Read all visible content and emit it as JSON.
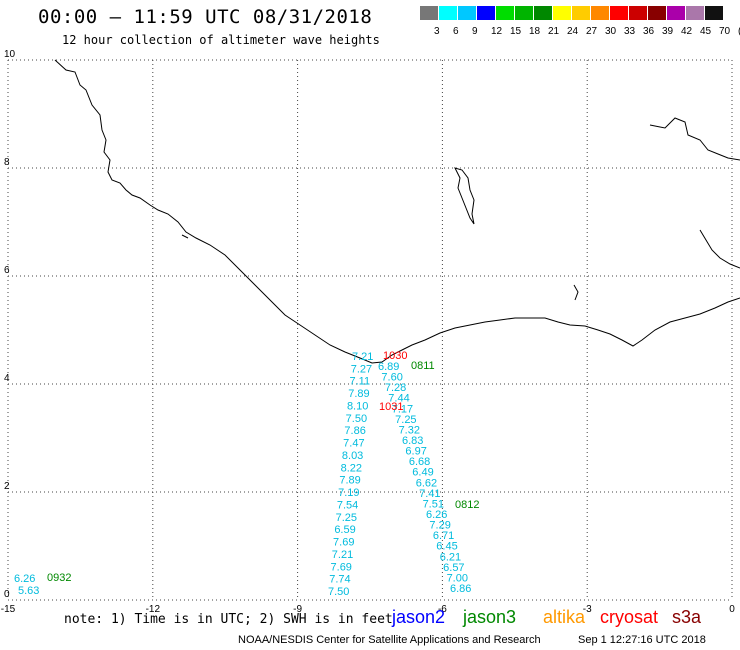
{
  "title": "00:00 – 11:59 UTC 08/31/2018",
  "subtitle": "12 hour collection of altimeter wave heights",
  "legend": {
    "colors": [
      "#777777",
      "#00ffff",
      "#00c8ff",
      "#0000ff",
      "#00dd00",
      "#00b400",
      "#008800",
      "#ffff00",
      "#ffcc00",
      "#ff8800",
      "#ff0000",
      "#cc0000",
      "#880000",
      "#aa00aa",
      "#aa77aa",
      "#111111"
    ],
    "labels": [
      "3",
      "6",
      "9",
      "12",
      "15",
      "18",
      "21",
      "24",
      "27",
      "30",
      "33",
      "36",
      "39",
      "42",
      "45",
      "70",
      "(ft)"
    ]
  },
  "axes": {
    "x_labels": [
      "-15",
      "-12",
      "-9",
      "-6",
      "-3",
      "0"
    ],
    "y_labels": [
      "0",
      "2",
      "4",
      "6",
      "8",
      "10"
    ],
    "x_range": [
      -15,
      0
    ],
    "y_range": [
      0,
      10
    ],
    "grid": "dotted"
  },
  "note": "note: 1) Time is in UTC; 2) SWH is in feet",
  "satellites": [
    {
      "name": "jason2",
      "color": "#0000ff"
    },
    {
      "name": "jason3",
      "color": "#008800"
    },
    {
      "name": "altika",
      "color": "#ff9900"
    },
    {
      "name": "cryosat",
      "color": "#ff0000"
    },
    {
      "name": "s3a",
      "color": "#880000"
    }
  ],
  "credit": "NOAA/NESDIS Center for Satellite Applications and Research",
  "timestamp": "Sep  1 12:27:16 UTC 2018",
  "pass_labels": [
    {
      "text": "1030",
      "color": "#ff0000"
    },
    {
      "text": "0811",
      "color": "#008800"
    },
    {
      "text": "1031",
      "color": "#ff0000"
    },
    {
      "text": "0812",
      "color": "#008800"
    },
    {
      "text": "0932",
      "color": "#008800"
    }
  ],
  "track_a": [
    "7.21",
    "7.27",
    "7.11",
    "7.89",
    "8.10",
    "7.50",
    "7.86",
    "7.47",
    "8.03",
    "8.22",
    "7.89",
    "7.19",
    "7.54",
    "7.25",
    "6.59",
    "7.69",
    "7.21",
    "7.69",
    "7.74",
    "7.50"
  ],
  "track_b": [
    "6.89",
    "7.60",
    "7.28",
    "7.44",
    "7.17",
    "7.25",
    "7.32",
    "6.83",
    "6.97",
    "6.68",
    "6.49",
    "6.62",
    "7.41",
    "7.51",
    "6.26",
    "7.29",
    "6.71",
    "6.45",
    "6.21",
    "6.57",
    "7.00",
    "6.86"
  ],
  "track_c": [
    "6.26",
    "5.63"
  ],
  "obs_color": "#00bbdd"
}
